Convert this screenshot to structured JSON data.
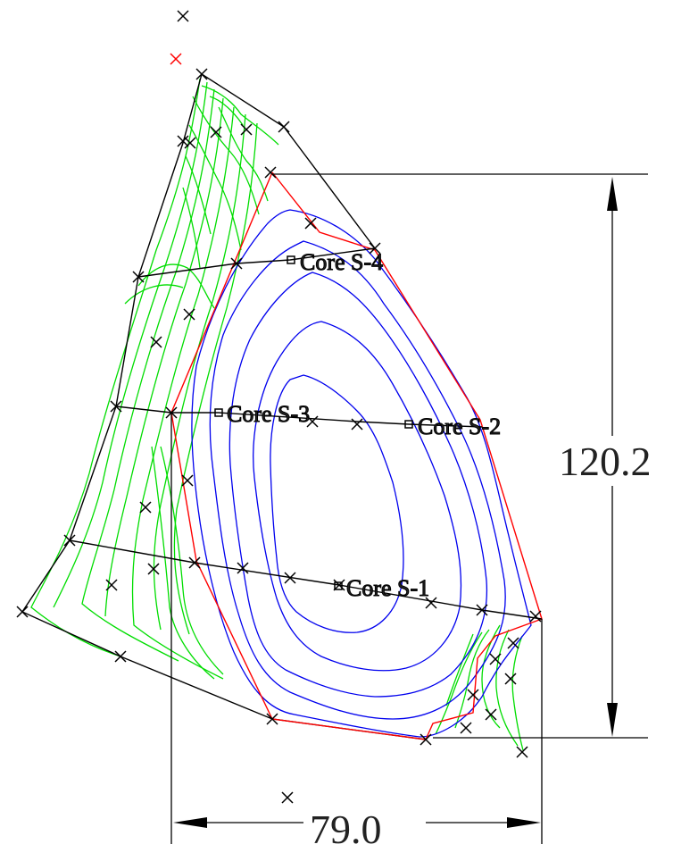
{
  "colors": {
    "outer_boundary": "#000000",
    "inner_boundary": "#ff0000",
    "outer_contours": "#00dd00",
    "inner_contours": "#0000ee",
    "section_lines": "#000000",
    "survey_marks": "#000000",
    "highlight_mark": "#ff0000",
    "dimensions": "#000000"
  },
  "cores": [
    {
      "label": "Core S-4"
    },
    {
      "label": "Core S-3"
    },
    {
      "label": "Core S-2"
    },
    {
      "label": "Core S-1"
    }
  ],
  "dimensions": {
    "height": {
      "label": "120.2"
    },
    "width": {
      "label": "79.0"
    }
  }
}
